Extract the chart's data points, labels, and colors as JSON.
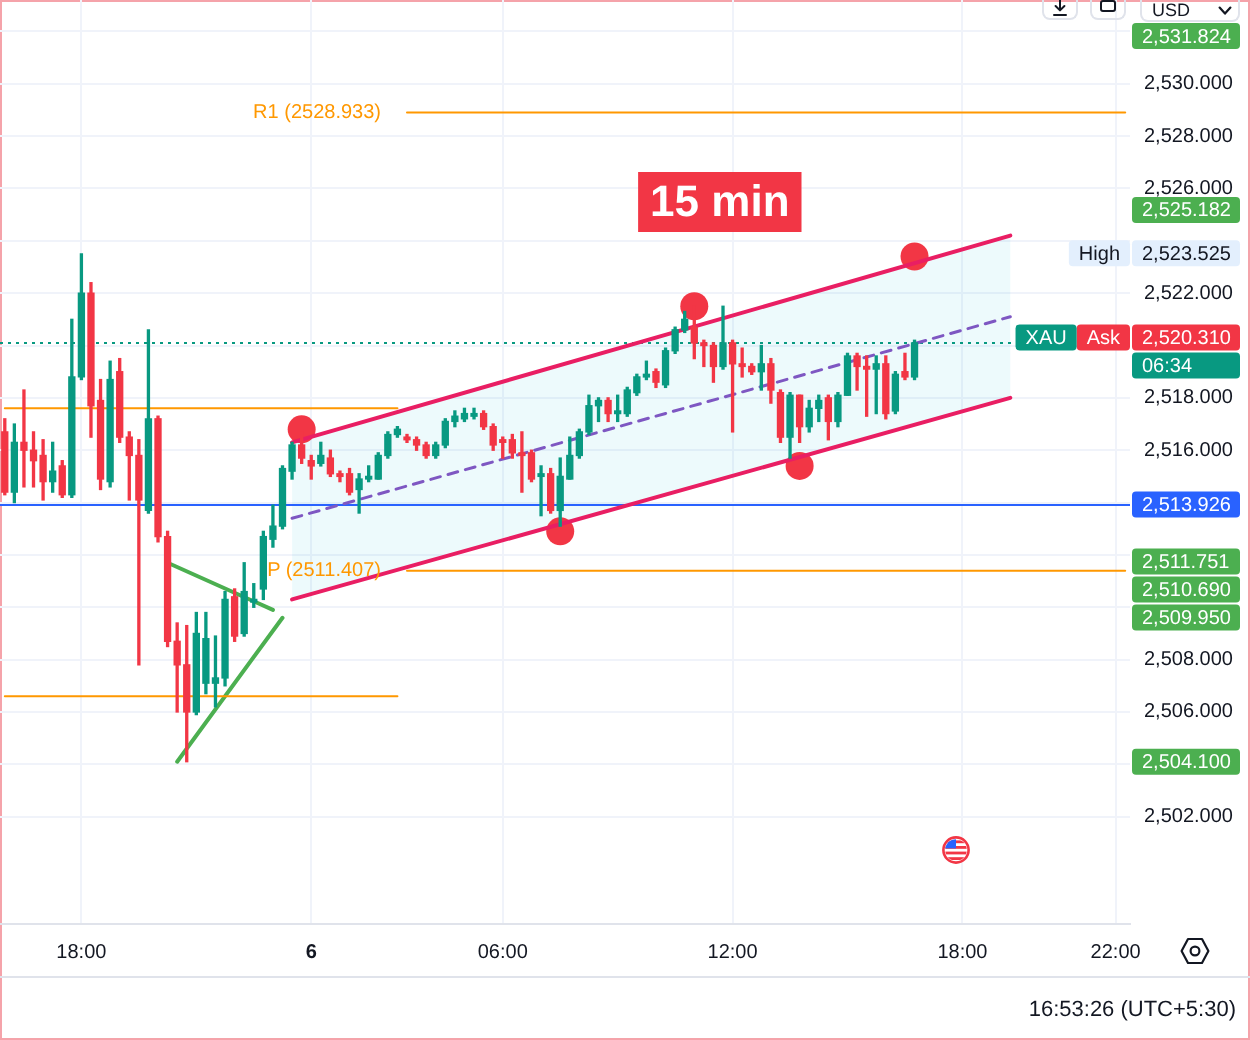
{
  "chart_data": {
    "type": "candlestick",
    "title": "15 min",
    "ylabel": "USD",
    "categories": [
      null,
      null,
      null,
      null,
      null,
      null,
      null,
      null,
      "18:00",
      null,
      null,
      null,
      null,
      null,
      null,
      null,
      null,
      null,
      null,
      null,
      null,
      null,
      null,
      null,
      null,
      null,
      null,
      null,
      null,
      null,
      null,
      null,
      "6",
      null,
      null,
      null,
      null,
      null,
      null,
      null,
      null,
      null,
      null,
      null,
      null,
      null,
      null,
      null,
      null,
      null,
      null,
      null,
      "06:00",
      null,
      null,
      null,
      null,
      null,
      null,
      null,
      null,
      null,
      null,
      null,
      null,
      null,
      null,
      null,
      null,
      null,
      null,
      null,
      null,
      null,
      null,
      null,
      "12:00",
      null,
      null,
      null,
      null,
      null,
      null,
      null,
      null,
      null,
      null,
      null,
      null,
      null,
      null,
      null,
      null,
      null,
      null,
      null,
      null,
      null,
      null,
      null,
      "18:00",
      null,
      null,
      null,
      null,
      null,
      null,
      null,
      null,
      null,
      null,
      null,
      null,
      null,
      null,
      null,
      "22:00",
      null
    ],
    "ohlc": [
      [
        2516.7,
        2517.2,
        2514.3,
        2514.4
      ],
      [
        2514.4,
        2517.0,
        2514.0,
        2516.3
      ],
      [
        2516.3,
        2518.3,
        2514.6,
        2516.0
      ],
      [
        2516.0,
        2516.7,
        2514.6,
        2515.6
      ],
      [
        2515.8,
        2516.4,
        2514.1,
        2514.8
      ],
      [
        2514.8,
        2516.3,
        2514.4,
        2515.2
      ],
      [
        2515.4,
        2515.6,
        2514.2,
        2514.3
      ],
      [
        2514.3,
        2521.0,
        2514.2,
        2518.8
      ],
      [
        2518.8,
        2523.5,
        2518.7,
        2522.0
      ],
      [
        2522.0,
        2522.4,
        2516.5,
        2517.7
      ],
      [
        2517.9,
        2518.7,
        2514.5,
        2514.9
      ],
      [
        2514.8,
        2519.4,
        2514.6,
        2518.7
      ],
      [
        2519.0,
        2519.5,
        2516.3,
        2516.5
      ],
      [
        2516.5,
        2516.7,
        2514.1,
        2515.8
      ],
      [
        2515.8,
        2516.4,
        2507.8,
        2514.1
      ],
      [
        2513.7,
        2520.6,
        2513.6,
        2517.2
      ],
      [
        2517.2,
        2517.3,
        2512.5,
        2512.7
      ],
      [
        2512.7,
        2512.9,
        2508.5,
        2508.7
      ],
      [
        2508.7,
        2509.4,
        2506.0,
        2507.8
      ],
      [
        2507.8,
        2509.3,
        2504.1,
        2506.0
      ],
      [
        2506.0,
        2509.8,
        2505.9,
        2509.0
      ],
      [
        2507.1,
        2509.8,
        2506.7,
        2508.8
      ],
      [
        2507.1,
        2508.9,
        2506.2,
        2507.3
      ],
      [
        2507.3,
        2510.6,
        2507.0,
        2510.3
      ],
      [
        2510.4,
        2510.7,
        2508.7,
        2508.9
      ],
      [
        2509.0,
        2511.7,
        2508.9,
        2510.6
      ],
      [
        2510.2,
        2510.9,
        2510.0,
        2510.3
      ],
      [
        2510.7,
        2512.9,
        2510.3,
        2512.7
      ],
      [
        2512.6,
        2513.9,
        2512.3,
        2513.1
      ],
      [
        2513.1,
        2515.4,
        2513.0,
        2515.3
      ],
      [
        2515.2,
        2516.3,
        2514.9,
        2516.2
      ],
      [
        2516.2,
        2516.7,
        2515.5,
        2515.7
      ],
      [
        2515.6,
        2515.8,
        2514.9,
        2515.4
      ],
      [
        2515.5,
        2516.3,
        2515.4,
        2515.8
      ],
      [
        2515.7,
        2516.0,
        2515.0,
        2515.1
      ],
      [
        2515.1,
        2515.2,
        2514.8,
        2515.0
      ],
      [
        2515.1,
        2515.3,
        2514.3,
        2514.4
      ],
      [
        2514.5,
        2515.1,
        2513.6,
        2514.9
      ],
      [
        2514.9,
        2515.4,
        2514.8,
        2515.0
      ],
      [
        2514.9,
        2515.9,
        2514.9,
        2515.8
      ],
      [
        2515.8,
        2516.7,
        2515.7,
        2516.6
      ],
      [
        2516.6,
        2516.9,
        2516.5,
        2516.8
      ],
      [
        2516.5,
        2516.6,
        2516.3,
        2516.4
      ],
      [
        2516.4,
        2516.5,
        2516.0,
        2516.2
      ],
      [
        2516.2,
        2516.3,
        2515.7,
        2515.8
      ],
      [
        2515.8,
        2516.3,
        2515.7,
        2516.2
      ],
      [
        2516.2,
        2517.2,
        2516.1,
        2517.1
      ],
      [
        2517.1,
        2517.5,
        2516.9,
        2517.3
      ],
      [
        2517.2,
        2517.6,
        2517.1,
        2517.4
      ],
      [
        2517.3,
        2517.6,
        2517.2,
        2517.4
      ],
      [
        2517.4,
        2517.5,
        2516.8,
        2516.9
      ],
      [
        2516.9,
        2517.0,
        2516.0,
        2516.2
      ],
      [
        2516.4,
        2516.5,
        2515.7,
        2516.3
      ],
      [
        2516.4,
        2516.6,
        2515.7,
        2515.9
      ],
      [
        2515.9,
        2516.7,
        2514.4,
        2515.8
      ],
      [
        2515.9,
        2516.0,
        2514.8,
        2514.9
      ],
      [
        2515.0,
        2515.4,
        2513.5,
        2515.1
      ],
      [
        2515.1,
        2515.3,
        2513.6,
        2513.7
      ],
      [
        2513.7,
        2515.7,
        2513.1,
        2515.0
      ],
      [
        2514.9,
        2516.5,
        2514.9,
        2515.8
      ],
      [
        2515.8,
        2516.8,
        2515.7,
        2516.7
      ],
      [
        2516.7,
        2518.1,
        2516.6,
        2517.7
      ],
      [
        2517.7,
        2518.0,
        2517.1,
        2517.9
      ],
      [
        2517.9,
        2518.0,
        2517.1,
        2517.4
      ],
      [
        2517.4,
        2518.1,
        2517.1,
        2517.5
      ],
      [
        2517.4,
        2518.4,
        2517.3,
        2518.3
      ],
      [
        2518.2,
        2518.9,
        2518.1,
        2518.8
      ],
      [
        2518.8,
        2519.4,
        2518.7,
        2518.9
      ],
      [
        2519.0,
        2519.1,
        2518.4,
        2518.6
      ],
      [
        2518.5,
        2519.9,
        2518.4,
        2519.8
      ],
      [
        2519.8,
        2520.7,
        2519.7,
        2520.6
      ],
      [
        2520.6,
        2521.3,
        2520.5,
        2521.0
      ],
      [
        2520.7,
        2521.5,
        2519.5,
        2520.1
      ],
      [
        2520.1,
        2520.2,
        2519.2,
        2520.0
      ],
      [
        2520.0,
        2520.1,
        2518.6,
        2519.2
      ],
      [
        2519.2,
        2521.5,
        2519.1,
        2520.1
      ],
      [
        2520.1,
        2520.2,
        2516.7,
        2519.3
      ],
      [
        2519.3,
        2519.9,
        2518.8,
        2519.2
      ],
      [
        2519.2,
        2519.3,
        2518.9,
        2519.0
      ],
      [
        2519.0,
        2520.0,
        2518.3,
        2519.3
      ],
      [
        2519.3,
        2519.5,
        2517.8,
        2518.3
      ],
      [
        2518.2,
        2518.3,
        2516.3,
        2516.5
      ],
      [
        2516.5,
        2518.2,
        2515.7,
        2518.1
      ],
      [
        2518.1,
        2518.1,
        2516.3,
        2516.9
      ],
      [
        2516.9,
        2517.9,
        2516.7,
        2517.6
      ],
      [
        2517.6,
        2518.1,
        2517.1,
        2517.9
      ],
      [
        2518.0,
        2518.1,
        2516.4,
        2517.1
      ],
      [
        2517.1,
        2518.2,
        2516.9,
        2518.1
      ],
      [
        2518.1,
        2519.7,
        2518.1,
        2519.6
      ],
      [
        2519.6,
        2519.7,
        2518.3,
        2519.2
      ],
      [
        2519.2,
        2519.6,
        2517.3,
        2519.1
      ],
      [
        2519.1,
        2519.6,
        2517.4,
        2519.3
      ],
      [
        2519.3,
        2519.6,
        2517.2,
        2517.4
      ],
      [
        2517.5,
        2519.0,
        2517.4,
        2518.9
      ],
      [
        2519.0,
        2519.7,
        2518.7,
        2518.8
      ],
      [
        2518.8,
        2520.2,
        2518.7,
        2520.1
      ],
      null,
      null,
      null,
      null,
      null,
      null,
      null,
      null,
      null,
      null,
      null,
      null,
      null,
      null,
      null,
      null,
      null,
      null,
      null,
      null,
      null,
      null
    ],
    "colors": [
      "#f23645",
      "#089981",
      "#f23645",
      "#f23645",
      "#f23645",
      "#089981",
      "#f23645",
      "#089981",
      "#089981",
      "#f23645",
      "#f23645",
      "#089981",
      "#f23645",
      "#f23645",
      "#f23645",
      "#089981",
      "#f23645",
      "#f23645",
      "#f23645",
      "#f23645",
      "#089981",
      "#089981",
      "#089981",
      "#089981",
      "#f23645",
      "#089981",
      "#089981",
      "#089981",
      "#089981",
      "#089981",
      "#089981",
      "#f23645",
      "#f23645",
      "#089981",
      "#f23645",
      "#f23645",
      "#f23645",
      "#089981",
      "#089981",
      "#089981",
      "#089981",
      "#089981",
      "#f23645",
      "#f23645",
      "#f23645",
      "#089981",
      "#089981",
      "#089981",
      "#089981",
      "#089981",
      "#f23645",
      "#f23645",
      "#f23645",
      "#f23645",
      "#f23645",
      "#f23645",
      "#089981",
      "#f23645",
      "#089981",
      "#089981",
      "#089981",
      "#089981",
      "#089981",
      "#f23645",
      "#089981",
      "#089981",
      "#089981",
      "#089981",
      "#f23645",
      "#089981",
      "#089981",
      "#089981",
      "#f23645",
      "#f23645",
      "#f23645",
      "#089981",
      "#f23645",
      "#f23645",
      "#f23645",
      "#089981",
      "#f23645",
      "#f23645",
      "#089981",
      "#f23645",
      "#089981",
      "#089981",
      "#f23645",
      "#089981",
      "#089981",
      "#f23645",
      "#f23645",
      "#089981",
      "#f23645",
      "#089981",
      "#f23645",
      "#089981",
      null,
      null,
      null,
      null,
      null,
      null,
      null,
      null,
      null,
      null,
      null,
      null,
      null,
      null,
      null,
      null,
      null,
      null,
      null,
      null,
      null,
      null
    ],
    "series": [
      {
        "type": "line",
        "color": "#ff9800",
        "values": [
          2517.6,
          2517.6,
          2517.6,
          2517.6,
          2517.6,
          2517.6,
          2517.6,
          2517.6,
          2517.6,
          2517.6,
          2517.6,
          2517.6,
          2517.6,
          2517.6,
          2517.6,
          2517.6,
          2517.6,
          2517.6,
          2517.6,
          2517.6,
          2517.6,
          2517.6,
          2517.6,
          2517.6,
          2517.6,
          2517.6,
          2517.6,
          2517.6,
          2517.6,
          2517.6,
          2517.6,
          2517.6,
          2517.6,
          2517.6,
          2517.6,
          2517.6,
          2517.6,
          2517.6,
          2517.6,
          2517.6,
          2517.6,
          2517.6,
          null,
          null,
          null,
          null,
          null,
          null,
          null,
          null,
          null,
          null,
          null,
          null,
          null,
          null,
          null,
          null,
          null,
          null,
          null,
          null,
          null,
          null,
          null,
          null,
          null,
          null,
          null,
          null,
          null,
          null,
          null,
          null,
          null,
          null,
          null,
          null,
          null,
          null,
          null,
          null,
          null,
          null,
          null,
          null,
          null,
          null,
          null,
          null,
          null,
          null,
          null,
          null,
          null,
          null,
          null,
          null,
          null,
          null,
          null,
          null,
          null,
          null,
          null,
          null,
          null,
          null,
          null,
          null,
          null,
          null,
          null,
          null,
          null,
          null,
          null,
          null
        ]
      },
      {
        "type": "line",
        "color": "#ff9800",
        "values": [
          2506.6,
          2506.6,
          2506.6,
          2506.6,
          2506.6,
          2506.6,
          2506.6,
          2506.6,
          2506.6,
          2506.6,
          2506.6,
          2506.6,
          2506.6,
          2506.6,
          2506.6,
          2506.6,
          2506.6,
          2506.6,
          2506.6,
          2506.6,
          2506.6,
          2506.6,
          2506.6,
          2506.6,
          2506.6,
          2506.6,
          2506.6,
          2506.6,
          2506.6,
          2506.6,
          2506.6,
          2506.6,
          2506.6,
          2506.6,
          2506.6,
          2506.6,
          2506.6,
          2506.6,
          2506.6,
          2506.6,
          2506.6,
          2506.6,
          null,
          null,
          null,
          null,
          null,
          null,
          null,
          null,
          null,
          null,
          null,
          null,
          null,
          null,
          null,
          null,
          null,
          null,
          null,
          null,
          null,
          null,
          null,
          null,
          null,
          null,
          null,
          null,
          null,
          null,
          null,
          null,
          null,
          null,
          null,
          null,
          null,
          null,
          null,
          null,
          null,
          null,
          null,
          null,
          null,
          null,
          null,
          null,
          null,
          null,
          null,
          null,
          null,
          null,
          null,
          null,
          null,
          null,
          null,
          null,
          null,
          null,
          null,
          null,
          null,
          null,
          null,
          null,
          null,
          null,
          null,
          null,
          null,
          null,
          null,
          null
        ]
      },
      {
        "type": "line",
        "name": "R1 (2528.933)",
        "color": "#ff9800",
        "values": [
          null,
          null,
          null,
          null,
          null,
          null,
          null,
          null,
          null,
          null,
          null,
          null,
          null,
          null,
          null,
          null,
          null,
          null,
          null,
          null,
          null,
          null,
          null,
          null,
          null,
          null,
          null,
          null,
          null,
          null,
          null,
          null,
          null,
          null,
          null,
          null,
          null,
          null,
          null,
          null,
          null,
          null,
          2528.9,
          2528.9,
          2528.9,
          2528.9,
          2528.9,
          2528.9,
          2528.9,
          2528.9,
          2528.9,
          2528.9,
          2528.9,
          2528.9,
          2528.9,
          2528.9,
          2528.9,
          2528.9,
          2528.9,
          2528.9,
          2528.9,
          2528.9,
          2528.9,
          2528.9,
          2528.9,
          2528.9,
          2528.9,
          2528.9,
          2528.9,
          2528.9,
          2528.9,
          2528.9,
          2528.9,
          2528.9,
          2528.9,
          2528.9,
          2528.9,
          2528.9,
          2528.9,
          2528.9,
          2528.9,
          2528.9,
          2528.9,
          2528.9,
          2528.9,
          2528.9,
          2528.9,
          2528.9,
          2528.9,
          2528.9,
          2528.9,
          2528.9,
          2528.9,
          2528.9,
          2528.9,
          2528.9,
          2528.9,
          2528.9,
          2528.9,
          2528.9,
          2528.9,
          2528.9,
          2528.9,
          2528.9,
          2528.9,
          2528.9,
          2528.9,
          2528.9,
          2528.9,
          2528.9,
          2528.9,
          2528.9,
          2528.9,
          2528.9,
          2528.9,
          2528.9,
          2528.9,
          2528.9
        ]
      },
      {
        "type": "line",
        "name": "P (2511.407)",
        "color": "#ff9800",
        "values": [
          null,
          null,
          null,
          null,
          null,
          null,
          null,
          null,
          null,
          null,
          null,
          null,
          null,
          null,
          null,
          null,
          null,
          null,
          null,
          null,
          null,
          null,
          null,
          null,
          null,
          null,
          null,
          null,
          null,
          null,
          null,
          null,
          null,
          null,
          null,
          null,
          null,
          null,
          null,
          null,
          null,
          null,
          2511.4,
          2511.4,
          2511.4,
          2511.4,
          2511.4,
          2511.4,
          2511.4,
          2511.4,
          2511.4,
          2511.4,
          2511.4,
          2511.4,
          2511.4,
          2511.4,
          2511.4,
          2511.4,
          2511.4,
          2511.4,
          2511.4,
          2511.4,
          2511.4,
          2511.4,
          2511.4,
          2511.4,
          2511.4,
          2511.4,
          2511.4,
          2511.4,
          2511.4,
          2511.4,
          2511.4,
          2511.4,
          2511.4,
          2511.4,
          2511.4,
          2511.4,
          2511.4,
          2511.4,
          2511.4,
          2511.4,
          2511.4,
          2511.4,
          2511.4,
          2511.4,
          2511.4,
          2511.4,
          2511.4,
          2511.4,
          2511.4,
          2511.4,
          2511.4,
          2511.4,
          2511.4,
          2511.4,
          2511.4,
          2511.4,
          2511.4,
          2511.4,
          2511.4,
          2511.4,
          2511.4,
          2511.4,
          2511.4,
          2511.4,
          2511.4,
          2511.4,
          2511.4,
          2511.4,
          2511.4,
          2511.4,
          2511.4,
          2511.4,
          2511.4,
          2511.4,
          2511.4,
          2511.4
        ]
      },
      {
        "type": "line",
        "color": "#e91e63",
        "values": [
          null,
          null,
          null,
          null,
          null,
          null,
          null,
          null,
          null,
          null,
          null,
          null,
          null,
          null,
          null,
          null,
          null,
          null,
          null,
          null,
          null,
          null,
          null,
          null,
          null,
          null,
          null,
          null,
          null,
          null,
          2516.3,
          null,
          null,
          null,
          null,
          null,
          null,
          null,
          null,
          null,
          null,
          null,
          null,
          null,
          null,
          null,
          null,
          null,
          null,
          null,
          null,
          null,
          null,
          null,
          null,
          null,
          null,
          null,
          null,
          null,
          null,
          null,
          null,
          null,
          null,
          null,
          null,
          null,
          null,
          null,
          null,
          null,
          null,
          null,
          null,
          null,
          null,
          null,
          null,
          null,
          null,
          null,
          null,
          null,
          null,
          null,
          null,
          null,
          null,
          null,
          null,
          null,
          null,
          null,
          null,
          null,
          null,
          null,
          null,
          null,
          null,
          null,
          null,
          null,
          null,
          2524.2,
          null,
          null,
          null,
          null,
          null,
          null,
          null,
          null,
          null,
          null,
          null,
          null
        ]
      },
      {
        "type": "line",
        "color": "#e91e63",
        "values": [
          null,
          null,
          null,
          null,
          null,
          null,
          null,
          null,
          null,
          null,
          null,
          null,
          null,
          null,
          null,
          null,
          null,
          null,
          null,
          null,
          null,
          null,
          null,
          null,
          null,
          null,
          null,
          null,
          null,
          null,
          2510.3,
          null,
          null,
          null,
          null,
          null,
          null,
          null,
          null,
          null,
          null,
          null,
          null,
          null,
          null,
          null,
          null,
          null,
          null,
          null,
          null,
          null,
          null,
          null,
          null,
          null,
          null,
          null,
          null,
          null,
          null,
          null,
          null,
          null,
          null,
          null,
          null,
          null,
          null,
          null,
          null,
          null,
          null,
          null,
          null,
          null,
          null,
          null,
          null,
          null,
          null,
          null,
          null,
          null,
          null,
          null,
          null,
          null,
          null,
          null,
          null,
          null,
          null,
          null,
          null,
          null,
          null,
          null,
          null,
          null,
          null,
          null,
          null,
          null,
          null,
          2518.0,
          null,
          null,
          null,
          null,
          null,
          null,
          null,
          null,
          null,
          null,
          null,
          null
        ]
      },
      {
        "type": "line",
        "color": "#7e57c2",
        "line_style": "dashed",
        "values": [
          null,
          null,
          null,
          null,
          null,
          null,
          null,
          null,
          null,
          null,
          null,
          null,
          null,
          null,
          null,
          null,
          null,
          null,
          null,
          null,
          null,
          null,
          null,
          null,
          null,
          null,
          null,
          null,
          null,
          null,
          2513.4,
          null,
          null,
          null,
          null,
          null,
          null,
          null,
          null,
          null,
          null,
          null,
          null,
          null,
          null,
          null,
          null,
          null,
          null,
          null,
          null,
          null,
          null,
          null,
          null,
          null,
          null,
          null,
          null,
          null,
          null,
          null,
          null,
          null,
          null,
          null,
          null,
          null,
          null,
          null,
          null,
          null,
          null,
          null,
          null,
          null,
          null,
          null,
          null,
          null,
          null,
          null,
          null,
          null,
          null,
          null,
          null,
          null,
          null,
          null,
          null,
          null,
          null,
          null,
          null,
          null,
          null,
          null,
          null,
          null,
          null,
          null,
          null,
          null,
          null,
          2521.1,
          null,
          null,
          null,
          null,
          null,
          null,
          null,
          null,
          null,
          null,
          null,
          null
        ],
        "lower": [
          null,
          null,
          null,
          null,
          null,
          null,
          null,
          null,
          null,
          null,
          null,
          null,
          null,
          null,
          null,
          null,
          null,
          null,
          null,
          null,
          null,
          null,
          null,
          null,
          null,
          null,
          null,
          null,
          null,
          null,
          2510.3,
          null,
          null,
          null,
          null,
          null,
          null,
          null,
          null,
          null,
          null,
          null,
          null,
          null,
          null,
          null,
          null,
          null,
          null,
          null,
          null,
          null,
          null,
          null,
          null,
          null,
          null,
          null,
          null,
          null,
          null,
          null,
          null,
          null,
          null,
          null,
          null,
          null,
          null,
          null,
          null,
          null,
          null,
          null,
          null,
          null,
          null,
          null,
          null,
          null,
          null,
          null,
          null,
          null,
          null,
          null,
          null,
          null,
          null,
          null,
          null,
          null,
          null,
          null,
          null,
          null,
          null,
          null,
          null,
          null,
          null,
          null,
          null,
          null,
          null,
          2518.0,
          null,
          null,
          null,
          null,
          null,
          null,
          null,
          null,
          null,
          null,
          null,
          null
        ],
        "upper": [
          null,
          null,
          null,
          null,
          null,
          null,
          null,
          null,
          null,
          null,
          null,
          null,
          null,
          null,
          null,
          null,
          null,
          null,
          null,
          null,
          null,
          null,
          null,
          null,
          null,
          null,
          null,
          null,
          null,
          null,
          2516.3,
          null,
          null,
          null,
          null,
          null,
          null,
          null,
          null,
          null,
          null,
          null,
          null,
          null,
          null,
          null,
          null,
          null,
          null,
          null,
          null,
          null,
          null,
          null,
          null,
          null,
          null,
          null,
          null,
          null,
          null,
          null,
          null,
          null,
          null,
          null,
          null,
          null,
          null,
          null,
          null,
          null,
          null,
          null,
          null,
          null,
          null,
          null,
          null,
          null,
          null,
          null,
          null,
          null,
          null,
          null,
          null,
          null,
          null,
          null,
          null,
          null,
          null,
          null,
          null,
          null,
          null,
          null,
          null,
          null,
          null,
          null,
          null,
          null,
          null,
          2524.2,
          null,
          null,
          null,
          null,
          null,
          null,
          null,
          null,
          null,
          null,
          null,
          null
        ]
      },
      {
        "type": "line",
        "color": "#4caf50",
        "values": [
          null,
          null,
          null,
          null,
          null,
          null,
          null,
          null,
          null,
          null,
          null,
          null,
          null,
          null,
          null,
          null,
          null,
          2511.7,
          null,
          null,
          null,
          null,
          null,
          null,
          null,
          null,
          null,
          null,
          2509.9,
          null,
          null,
          null,
          null,
          null,
          null,
          null,
          null,
          null,
          null,
          null,
          null,
          null,
          null,
          null,
          null,
          null,
          null,
          null,
          null,
          null,
          null,
          null,
          null,
          null,
          null,
          null,
          null,
          null,
          null,
          null,
          null,
          null,
          null,
          null,
          null,
          null,
          null,
          null,
          null,
          null,
          null,
          null,
          null,
          null,
          null,
          null,
          null,
          null,
          null,
          null,
          null,
          null,
          null,
          null,
          null,
          null,
          null,
          null,
          null,
          null,
          null,
          null,
          null,
          null,
          null,
          null,
          null,
          null,
          null,
          null,
          null,
          null,
          null,
          null,
          null,
          null,
          null,
          null,
          null,
          null,
          null,
          null,
          null,
          null,
          null,
          null,
          null,
          null
        ]
      },
      {
        "type": "line",
        "color": "#4caf50",
        "values": [
          null,
          null,
          null,
          null,
          null,
          null,
          null,
          null,
          null,
          null,
          null,
          null,
          null,
          null,
          null,
          null,
          null,
          null,
          2504.1,
          null,
          null,
          null,
          null,
          null,
          null,
          null,
          null,
          null,
          null,
          2509.6,
          null,
          null,
          null,
          null,
          null,
          null,
          null,
          null,
          null,
          null,
          null,
          null,
          null,
          null,
          null,
          null,
          null,
          null,
          null,
          null,
          null,
          null,
          null,
          null,
          null,
          null,
          null,
          null,
          null,
          null,
          null,
          null,
          null,
          null,
          null,
          null,
          null,
          null,
          null,
          null,
          null,
          null,
          null,
          null,
          null,
          null,
          null,
          null,
          null,
          null,
          null,
          null,
          null,
          null,
          null,
          null,
          null,
          null,
          null,
          null,
          null,
          null,
          null,
          null,
          null,
          null,
          null,
          null,
          null,
          null,
          null,
          null,
          null,
          null,
          null,
          null,
          null,
          null,
          null,
          null,
          null,
          null,
          null,
          null,
          null,
          null,
          null,
          null
        ]
      },
      {
        "type": "scatter",
        "color": "#f23645",
        "marker": "circle",
        "values": [
          null,
          null,
          null,
          null,
          null,
          null,
          null,
          null,
          null,
          null,
          null,
          null,
          null,
          null,
          null,
          null,
          null,
          null,
          null,
          null,
          null,
          null,
          null,
          null,
          null,
          null,
          null,
          null,
          null,
          null,
          null,
          2516.8,
          null,
          null,
          null,
          null,
          null,
          null,
          null,
          null,
          null,
          null,
          null,
          null,
          null,
          null,
          null,
          null,
          null,
          null,
          null,
          null,
          null,
          null,
          null,
          null,
          null,
          null,
          2512.9,
          null,
          null,
          null,
          null,
          null,
          null,
          null,
          null,
          null,
          null,
          null,
          null,
          null,
          2521.5,
          null,
          null,
          null,
          null,
          null,
          null,
          null,
          null,
          null,
          null,
          2515.4,
          null,
          null,
          null,
          null,
          null,
          null,
          null,
          null,
          null,
          null,
          null,
          2523.4,
          null,
          null,
          null,
          null,
          null,
          null,
          null,
          null,
          null,
          null,
          null,
          null,
          null,
          null,
          null,
          null,
          null,
          null,
          null,
          null,
          null,
          null
        ]
      }
    ],
    "ylim": [
      2497.9,
      2533.2
    ],
    "yticks": [
      {
        "value": 2502,
        "label": "2,502.000"
      },
      {
        "value": 2504,
        "label": null
      },
      {
        "value": 2506,
        "label": "2,506.000"
      },
      {
        "value": 2508,
        "label": "2,508.000"
      },
      {
        "value": 2510,
        "label": null
      },
      {
        "value": 2512,
        "label": null
      },
      {
        "value": 2514,
        "label": null
      },
      {
        "value": 2516,
        "label": "2,516.000"
      },
      {
        "value": 2518,
        "label": "2,518.000"
      },
      {
        "value": 2520,
        "label": null
      },
      {
        "value": 2522,
        "label": "2,522.000"
      },
      {
        "value": 2524,
        "label": null
      },
      {
        "value": 2526,
        "label": "2,526.000"
      },
      {
        "value": 2528,
        "label": "2,528.000"
      },
      {
        "value": 2530,
        "label": "2,530.000"
      },
      {
        "value": 2532,
        "label": null
      }
    ],
    "grid": true,
    "ref_lines": [
      {
        "axis": "y",
        "value": 2513.926,
        "label": "2,513.926",
        "color": "#2962ff"
      },
      {
        "axis": "y",
        "value": 2520.1,
        "color": "#089981",
        "line_style": "dotted"
      }
    ],
    "annotations": [
      "2,531.824",
      "2,525.182",
      "High",
      "2,523.525",
      "XAU",
      "Ask",
      "2,520.310",
      "06:34",
      "2,511.751",
      "2,510.690",
      "2,509.950",
      "2,504.100",
      "16:53:26 (UTC+5:30)"
    ]
  }
}
